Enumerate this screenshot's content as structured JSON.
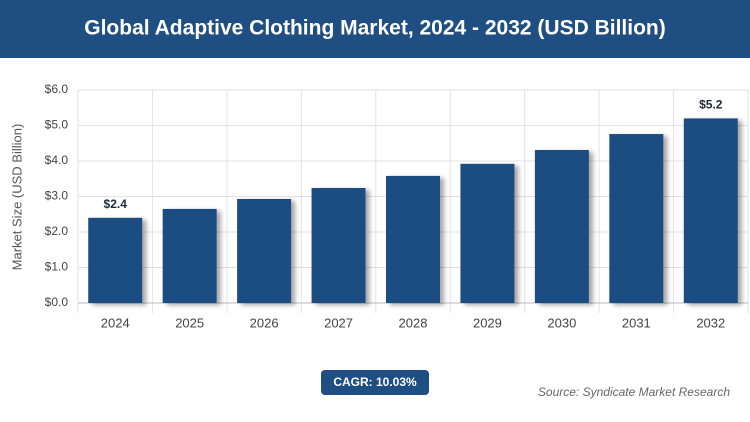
{
  "chart_data": {
    "type": "bar",
    "title": "Global Adaptive Clothing Market, 2024 - 2032 (USD Billion)",
    "y_label": "Market Size (USD Billion)",
    "categories": [
      "2024",
      "2025",
      "2026",
      "2027",
      "2028",
      "2029",
      "2030",
      "2031",
      "2032"
    ],
    "values": [
      2.4,
      2.65,
      2.93,
      3.24,
      3.58,
      3.92,
      4.31,
      4.76,
      5.2
    ],
    "value_labels": [
      "$2.4",
      null,
      null,
      null,
      null,
      null,
      null,
      null,
      "$5.2"
    ],
    "color": "#1f4e82",
    "ylim": [
      0,
      6
    ],
    "yticks": [
      {
        "value": 0,
        "label": "$0.0"
      },
      {
        "value": 1,
        "label": "$1.0"
      },
      {
        "value": 2,
        "label": "$2.0"
      },
      {
        "value": 3,
        "label": "$3.0"
      },
      {
        "value": 4,
        "label": "$4.0"
      },
      {
        "value": 5,
        "label": "$5.0"
      },
      {
        "value": 6,
        "label": "$6.0"
      }
    ],
    "grid": true,
    "cagr": "CAGR: 10.03%",
    "source": "Source: Syndicate Market Research"
  }
}
